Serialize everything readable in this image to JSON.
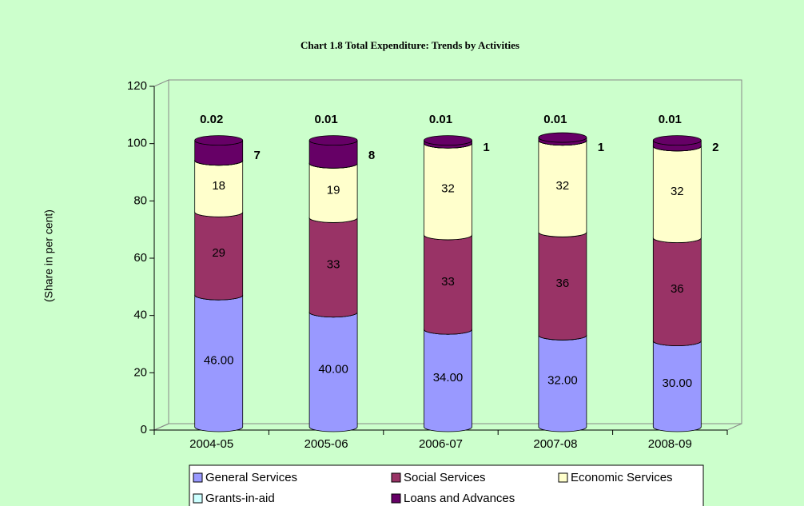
{
  "chart_data": {
    "type": "bar",
    "stacked": true,
    "title": "Chart 1.8 Total Expenditure: Trends by Activities",
    "y_label": "(Share in per cent)",
    "categories": [
      "2004-05",
      "2005-06",
      "2006-07",
      "2007-08",
      "2008-09"
    ],
    "series": [
      {
        "name": "General Services",
        "color": "#9999ff",
        "values": [
          46,
          40,
          34,
          32,
          30
        ],
        "value_labels": [
          "46.00",
          "40.00",
          "34.00",
          "32.00",
          "30.00"
        ]
      },
      {
        "name": "Social Services",
        "color": "#993366",
        "values": [
          29,
          33,
          33,
          36,
          36
        ]
      },
      {
        "name": "Economic Services",
        "color": "#ffffcc",
        "values": [
          18,
          19,
          32,
          32,
          32
        ]
      },
      {
        "name": "Grants-in-aid",
        "color": "#ccffff",
        "values": [
          0.02,
          0.01,
          0.01,
          0.01,
          0.01
        ]
      },
      {
        "name": "Loans and Advances",
        "color": "#660066",
        "values": [
          7,
          8,
          1,
          1,
          2
        ]
      }
    ],
    "ylim": [
      0,
      120
    ],
    "yticks": [
      0,
      20,
      40,
      60,
      80,
      100,
      120
    ],
    "grid": false
  }
}
